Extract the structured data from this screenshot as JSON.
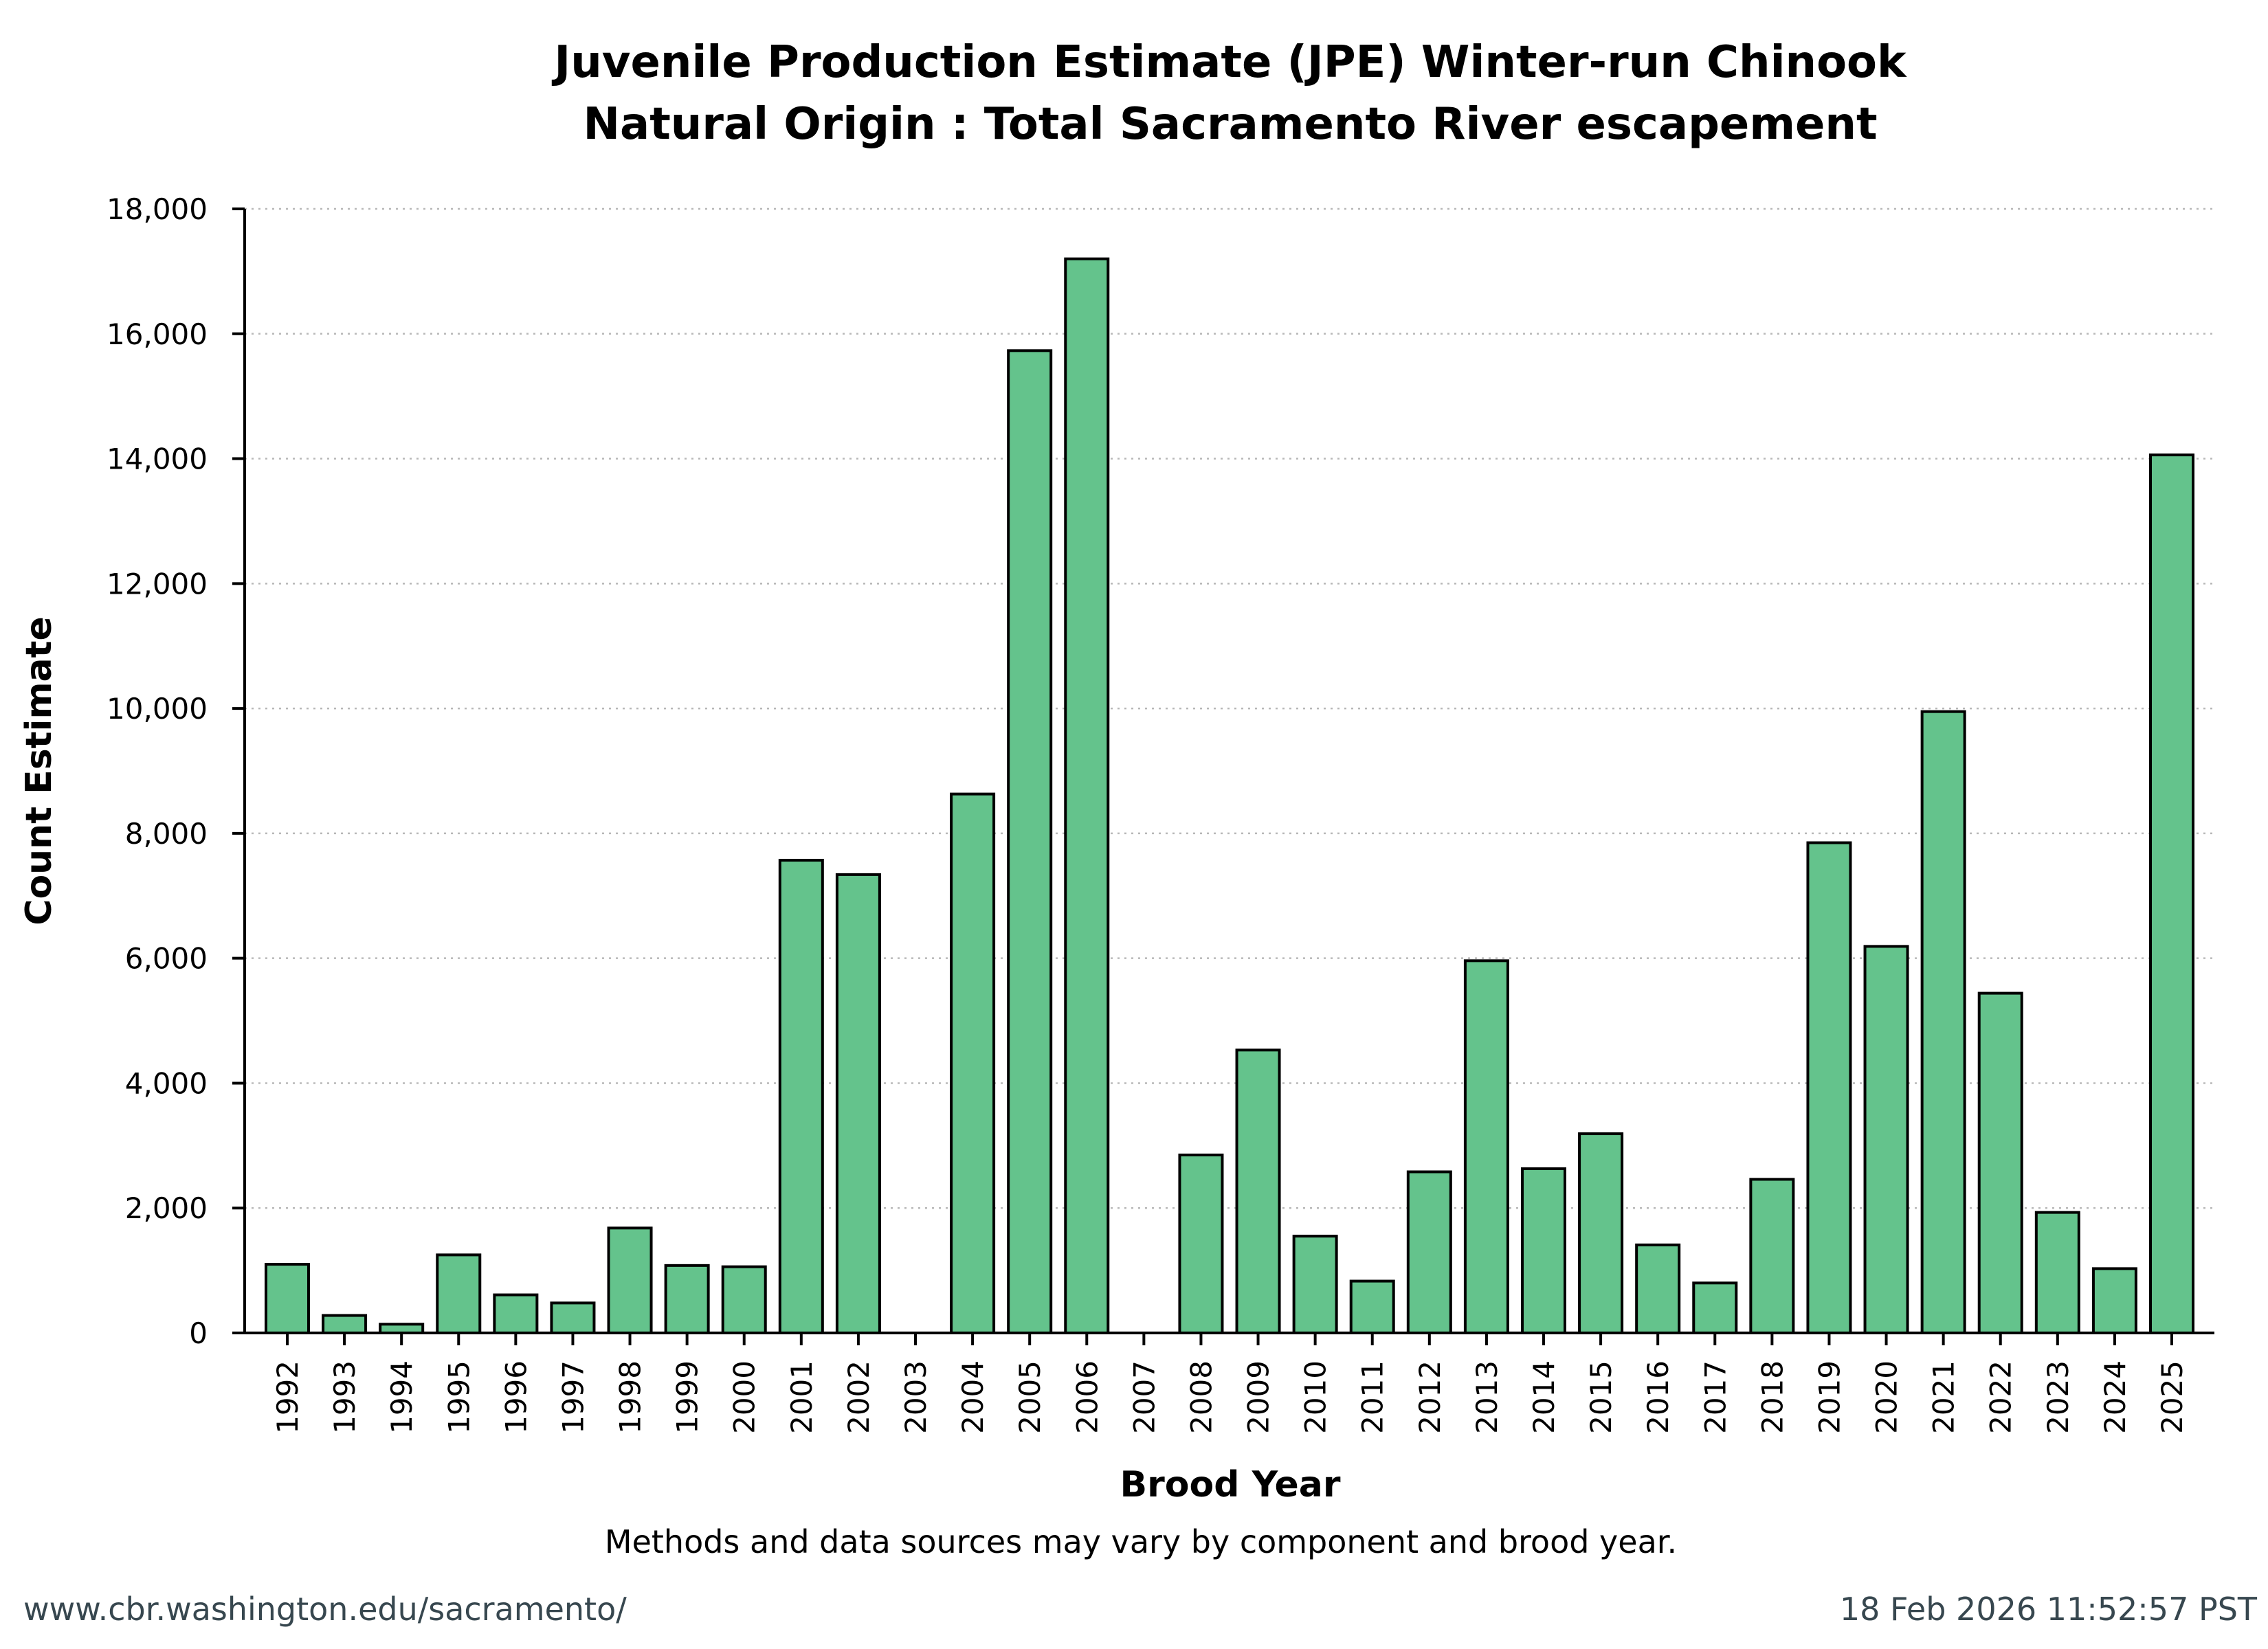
{
  "chart_data": {
    "type": "bar",
    "title": "Juvenile Production Estimate (JPE) Winter-run Chinook",
    "subtitle": "Natural Origin : Total Sacramento River escapement",
    "xlabel": "Brood Year",
    "ylabel": "Count Estimate",
    "ylim": [
      0,
      18000
    ],
    "yticks": [
      0,
      2000,
      4000,
      6000,
      8000,
      10000,
      12000,
      14000,
      16000,
      18000
    ],
    "ytick_labels": [
      "0",
      "2,000",
      "4,000",
      "6,000",
      "8,000",
      "10,000",
      "12,000",
      "14,000",
      "16,000",
      "18,000"
    ],
    "grid": true,
    "bar_color": "#64c38c",
    "categories": [
      "1992",
      "1993",
      "1994",
      "1995",
      "1996",
      "1997",
      "1998",
      "1999",
      "2000",
      "2001",
      "2002",
      "2003",
      "2004",
      "2005",
      "2006",
      "2007",
      "2008",
      "2009",
      "2010",
      "2011",
      "2012",
      "2013",
      "2014",
      "2015",
      "2016",
      "2017",
      "2018",
      "2019",
      "2020",
      "2021",
      "2022",
      "2023",
      "2024",
      "2025"
    ],
    "values": [
      1100,
      280,
      140,
      1250,
      610,
      480,
      1680,
      1080,
      1060,
      7570,
      7340,
      0,
      8630,
      15730,
      17200,
      0,
      2850,
      4530,
      1550,
      830,
      2580,
      5960,
      2630,
      3190,
      1410,
      800,
      2460,
      7850,
      6190,
      9950,
      5440,
      1930,
      1030,
      14060
    ]
  },
  "note": "Methods and data sources may vary by component and brood year.",
  "footer": {
    "url": "www.cbr.washington.edu/sacramento/",
    "timestamp": "18 Feb 2026 11:52:57 PST"
  }
}
